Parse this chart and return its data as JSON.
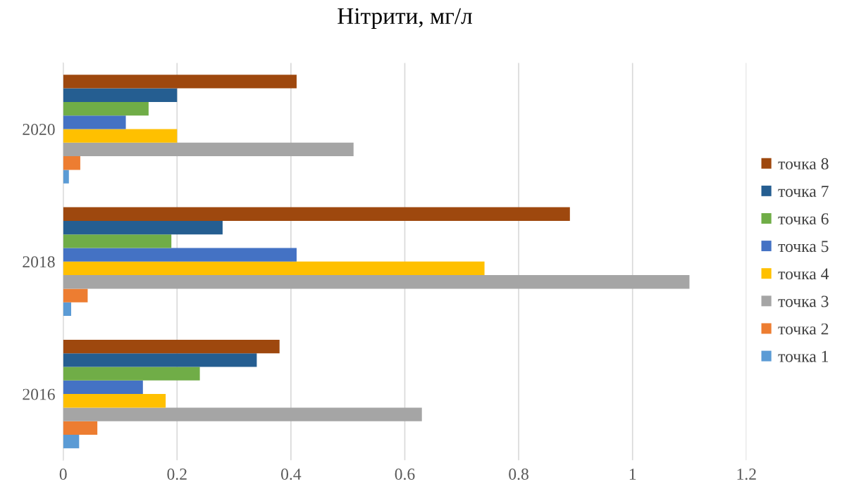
{
  "chart_data": {
    "type": "bar",
    "orientation": "horizontal",
    "title": "Нітрити, мг/л",
    "categories": [
      "2020",
      "2018",
      "2016"
    ],
    "series": [
      {
        "name": "точка 1",
        "color": "#5b9bd5",
        "values": [
          0.01,
          0.014,
          0.028
        ]
      },
      {
        "name": "точка 2",
        "color": "#ed7d31",
        "values": [
          0.03,
          0.043,
          0.06
        ]
      },
      {
        "name": "точка 3",
        "color": "#a5a5a5",
        "values": [
          0.51,
          1.1,
          0.63
        ]
      },
      {
        "name": "точка 4",
        "color": "#ffc000",
        "values": [
          0.2,
          0.74,
          0.18
        ]
      },
      {
        "name": "точка 5",
        "color": "#4472c4",
        "values": [
          0.11,
          0.41,
          0.14
        ]
      },
      {
        "name": "точка 6",
        "color": "#70ad47",
        "values": [
          0.15,
          0.19,
          0.24
        ]
      },
      {
        "name": "точка 7",
        "color": "#255e91",
        "values": [
          0.2,
          0.28,
          0.34
        ]
      },
      {
        "name": "точка 8",
        "color": "#9e480e",
        "values": [
          0.41,
          0.89,
          0.38
        ]
      }
    ],
    "xlim": [
      0,
      1.2
    ],
    "xticks": [
      0,
      0.2,
      0.4,
      0.6,
      0.8,
      1,
      1.2
    ],
    "grid": "x",
    "legend": "right"
  }
}
